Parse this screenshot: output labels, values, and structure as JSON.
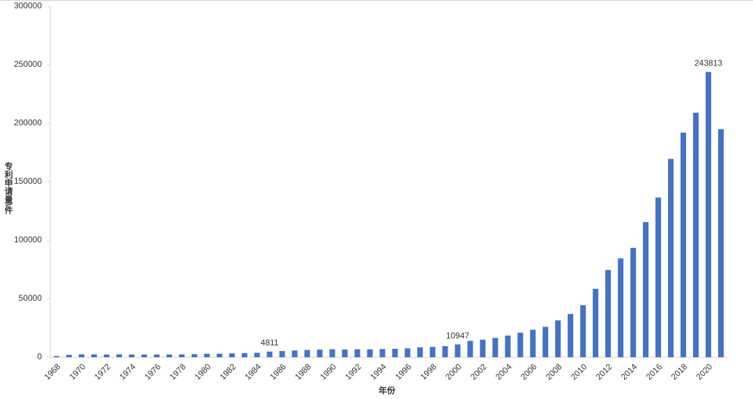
{
  "chart_data": {
    "type": "bar",
    "x_label": "年份",
    "y_label": "专利申请量\\件",
    "categories": [
      "1968",
      null,
      "1970",
      null,
      "1972",
      null,
      "1974",
      null,
      "1976",
      null,
      "1978",
      null,
      "1980",
      null,
      "1982",
      null,
      "1984",
      null,
      "1986",
      null,
      "1988",
      null,
      "1990",
      null,
      "1992",
      null,
      "1994",
      null,
      "1996",
      null,
      "1998",
      null,
      "2000",
      null,
      "2002",
      null,
      "2004",
      null,
      "2006",
      null,
      "2008",
      null,
      "2010",
      null,
      "2012",
      null,
      "2014",
      null,
      "2016",
      null,
      "2018",
      null,
      "2020",
      null
    ],
    "values": [
      1000,
      2000,
      2500,
      2500,
      2300,
      2500,
      2300,
      2300,
      2300,
      2300,
      2400,
      2700,
      3000,
      3000,
      3300,
      3500,
      3800,
      4811,
      5300,
      5800,
      6200,
      6500,
      6800,
      6600,
      6800,
      6800,
      7000,
      7200,
      7600,
      8500,
      8800,
      9500,
      10947,
      14000,
      15000,
      16500,
      18500,
      21000,
      23500,
      26000,
      31500,
      37000,
      44500,
      58500,
      74500,
      84500,
      93500,
      115500,
      136500,
      169500,
      192000,
      209000,
      243813,
      195000
    ],
    "value_labels": [
      null,
      null,
      null,
      null,
      null,
      null,
      null,
      null,
      null,
      null,
      null,
      null,
      null,
      null,
      null,
      null,
      null,
      "4811",
      null,
      null,
      null,
      null,
      null,
      null,
      null,
      null,
      null,
      null,
      null,
      null,
      null,
      null,
      "10947",
      null,
      null,
      null,
      null,
      null,
      null,
      null,
      null,
      null,
      null,
      null,
      null,
      null,
      null,
      null,
      null,
      null,
      null,
      null,
      "243813",
      null
    ],
    "color": "#4472c4",
    "ylim": [
      0,
      300000
    ],
    "yticks": [
      0,
      50000,
      100000,
      150000,
      200000,
      250000,
      300000
    ],
    "grid": false
  }
}
